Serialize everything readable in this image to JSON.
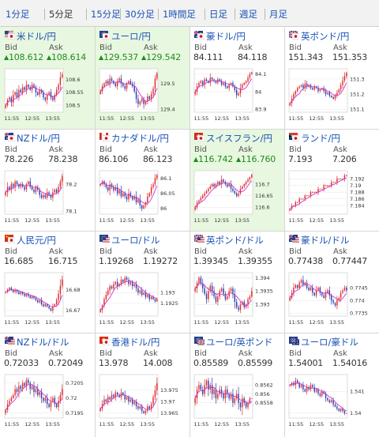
{
  "timeframe_tabs": [
    {
      "label": "1分足",
      "active": false
    },
    {
      "label": "5分足",
      "active": true
    },
    {
      "label": "15分足",
      "active": false
    },
    {
      "label": "30分足",
      "active": false
    },
    {
      "label": "1時間足",
      "active": false
    },
    {
      "label": "日足",
      "active": false
    },
    {
      "label": "週足",
      "active": false
    },
    {
      "label": "月足",
      "active": false
    }
  ],
  "bid_label": "Bid",
  "ask_label": "Ask",
  "colors": {
    "link": "#1a53b8",
    "up": "#1e8c1e",
    "highlight": "#e8f7df",
    "candle_up": "#e02828",
    "candle_down": "#2c3ea8",
    "moving_average": "#cc33cc"
  },
  "pairs": [
    {
      "name": "米ドル/円",
      "flags": [
        "us",
        "jp"
      ],
      "bid": "108.612",
      "ask": "108.614",
      "direction": "up",
      "highlighted": true,
      "chart_data": {
        "type": "candlestick",
        "yticks": [
          "108.6",
          "108.55",
          "108.5"
        ],
        "xticks": [
          "11:55",
          "12:55",
          "13:55"
        ],
        "close": [
          108.5,
          108.52,
          108.53,
          108.51,
          108.54,
          108.55,
          108.53,
          108.56,
          108.55,
          108.57,
          108.56,
          108.58,
          108.57,
          108.56,
          108.58,
          108.57,
          108.55,
          108.54,
          108.56,
          108.55,
          108.53,
          108.52,
          108.54,
          108.55,
          108.53,
          108.52,
          108.54,
          108.56,
          108.58,
          108.61,
          108.62
        ]
      }
    },
    {
      "name": "ユーロ/円",
      "flags": [
        "eu",
        "jp"
      ],
      "bid": "129.537",
      "ask": "129.542",
      "direction": "up",
      "highlighted": true,
      "chart_data": {
        "type": "candlestick",
        "yticks": [
          "129.5",
          "129.4"
        ],
        "xticks": [
          "11:55",
          "12:55",
          "13:55"
        ],
        "close": [
          129.47,
          129.49,
          129.5,
          129.51,
          129.5,
          129.52,
          129.51,
          129.5,
          129.49,
          129.51,
          129.52,
          129.5,
          129.49,
          129.48,
          129.5,
          129.51,
          129.5,
          129.49,
          129.47,
          129.44,
          129.42,
          129.43,
          129.44,
          129.42,
          129.43,
          129.45,
          129.44,
          129.46,
          129.48,
          129.52,
          129.54
        ]
      }
    },
    {
      "name": "豪ドル/円",
      "flags": [
        "au",
        "jp"
      ],
      "bid": "84.111",
      "ask": "84.118",
      "direction": "none",
      "highlighted": false,
      "chart_data": {
        "type": "candlestick",
        "yticks": [
          "84.1",
          "84",
          "83.9"
        ],
        "xticks": [
          "11:55",
          "12:55",
          "13:55"
        ],
        "close": [
          84.0,
          84.03,
          84.05,
          84.06,
          84.04,
          84.07,
          84.06,
          84.05,
          84.08,
          84.07,
          84.06,
          84.05,
          84.07,
          84.06,
          84.04,
          84.05,
          84.03,
          84.02,
          84.04,
          84.05,
          84.03,
          84.01,
          83.98,
          83.99,
          84.02,
          84.04,
          84.05,
          84.06,
          84.08,
          84.1,
          84.11
        ]
      }
    },
    {
      "name": "英ポンド/円",
      "flags": [
        "gb",
        "jp"
      ],
      "bid": "151.343",
      "ask": "151.353",
      "direction": "none",
      "highlighted": false,
      "chart_data": {
        "type": "candlestick",
        "yticks": [
          "151.3",
          "151.2",
          "151.1"
        ],
        "xticks": [
          "11:55",
          "12:55",
          "13:55"
        ],
        "close": [
          151.14,
          151.17,
          151.2,
          151.22,
          151.24,
          151.25,
          151.26,
          151.24,
          151.27,
          151.25,
          151.26,
          151.24,
          151.23,
          151.25,
          151.24,
          151.22,
          151.23,
          151.24,
          151.22,
          151.2,
          151.21,
          151.19,
          151.18,
          151.17,
          151.19,
          151.21,
          151.23,
          151.26,
          151.29,
          151.32,
          151.34
        ]
      }
    },
    {
      "name": "NZドル/円",
      "flags": [
        "nz",
        "jp"
      ],
      "bid": "78.226",
      "ask": "78.238",
      "direction": "none",
      "highlighted": false,
      "chart_data": {
        "type": "candlestick",
        "yticks": [
          "78.2",
          "78.1"
        ],
        "xticks": [
          "11:55",
          "12:55",
          "13:55"
        ],
        "close": [
          78.17,
          78.19,
          78.18,
          78.2,
          78.19,
          78.21,
          78.2,
          78.19,
          78.2,
          78.19,
          78.18,
          78.2,
          78.21,
          78.19,
          78.18,
          78.17,
          78.19,
          78.18,
          78.16,
          78.15,
          78.16,
          78.15,
          78.17,
          78.16,
          78.15,
          78.17,
          78.18,
          78.17,
          78.19,
          78.21,
          78.23
        ]
      }
    },
    {
      "name": "カナダドル/円",
      "flags": [
        "ca",
        "jp"
      ],
      "bid": "86.106",
      "ask": "86.123",
      "direction": "none",
      "highlighted": false,
      "chart_data": {
        "type": "candlestick",
        "yticks": [
          "86.1",
          "86.05",
          "86"
        ],
        "xticks": [
          "11:55",
          "12:55",
          "13:55"
        ],
        "close": [
          86.08,
          86.09,
          86.08,
          86.07,
          86.06,
          86.08,
          86.07,
          86.06,
          86.07,
          86.05,
          86.06,
          86.04,
          86.05,
          86.04,
          86.03,
          86.05,
          86.04,
          86.03,
          86.04,
          86.02,
          86.03,
          86.01,
          86.0,
          86.01,
          86.02,
          86.04,
          86.05,
          86.07,
          86.08,
          86.1,
          86.11
        ]
      }
    },
    {
      "name": "スイスフラン/円",
      "flags": [
        "ch",
        "jp"
      ],
      "bid": "116.742",
      "ask": "116.760",
      "direction": "up",
      "highlighted": true,
      "chart_data": {
        "type": "candlestick",
        "yticks": [
          "116.7",
          "116.65",
          "116.6"
        ],
        "xticks": [
          "11:55",
          "12:55",
          "13:55"
        ],
        "close": [
          116.6,
          116.62,
          116.63,
          116.64,
          116.65,
          116.66,
          116.67,
          116.68,
          116.69,
          116.7,
          116.69,
          116.7,
          116.71,
          116.7,
          116.72,
          116.71,
          116.7,
          116.69,
          116.7,
          116.68,
          116.67,
          116.66,
          116.65,
          116.66,
          116.68,
          116.69,
          116.7,
          116.71,
          116.72,
          116.73,
          116.74
        ]
      }
    },
    {
      "name": "ランド/円",
      "flags": [
        "za",
        "jp"
      ],
      "bid": "7.193",
      "ask": "7.206",
      "direction": "none",
      "highlighted": false,
      "chart_data": {
        "type": "candlestick",
        "yticks": [
          "7.192",
          "7.19",
          "7.188",
          "7.186",
          "7.184"
        ],
        "xticks": [
          "11:55",
          "12:55",
          "13:55"
        ],
        "close": [
          7.183,
          7.184,
          7.184,
          7.185,
          7.185,
          7.186,
          7.186,
          7.186,
          7.187,
          7.187,
          7.187,
          7.188,
          7.188,
          7.188,
          7.188,
          7.189,
          7.189,
          7.189,
          7.19,
          7.19,
          7.19,
          7.19,
          7.191,
          7.191,
          7.191,
          7.192,
          7.192,
          7.192,
          7.192,
          7.193,
          7.193
        ]
      }
    },
    {
      "name": "人民元/円",
      "flags": [
        "cn",
        "jp"
      ],
      "bid": "16.685",
      "ask": "16.715",
      "direction": "none",
      "highlighted": false,
      "chart_data": {
        "type": "candlestick",
        "yticks": [
          "16.68",
          "16.67"
        ],
        "xticks": [
          "11:55",
          "12:55",
          "13:55"
        ],
        "close": [
          16.679,
          16.68,
          16.681,
          16.68,
          16.679,
          16.68,
          16.679,
          16.678,
          16.679,
          16.678,
          16.677,
          16.678,
          16.677,
          16.676,
          16.677,
          16.676,
          16.675,
          16.674,
          16.675,
          16.673,
          16.672,
          16.673,
          16.672,
          16.671,
          16.67,
          16.672,
          16.673,
          16.675,
          16.678,
          16.682,
          16.685
        ]
      }
    },
    {
      "name": "ユーロ/ドル",
      "flags": [
        "eu",
        "us"
      ],
      "bid": "1.19268",
      "ask": "1.19272",
      "direction": "none",
      "highlighted": false,
      "chart_data": {
        "type": "candlestick",
        "yticks": [
          "1.193",
          "1.1925"
        ],
        "xticks": [
          "11:55",
          "12:55",
          "13:55"
        ],
        "close": [
          1.1922,
          1.1924,
          1.1927,
          1.1929,
          1.1931,
          1.1933,
          1.1932,
          1.1934,
          1.1935,
          1.1933,
          1.1934,
          1.1936,
          1.1935,
          1.1937,
          1.1936,
          1.1934,
          1.1935,
          1.1933,
          1.1934,
          1.1932,
          1.193,
          1.1931,
          1.1929,
          1.193,
          1.1928,
          1.1929,
          1.1927,
          1.1928,
          1.1927,
          1.1926,
          1.1927
        ]
      }
    },
    {
      "name": "英ポンド/ドル",
      "flags": [
        "gb",
        "us"
      ],
      "bid": "1.39345",
      "ask": "1.39355",
      "direction": "none",
      "highlighted": false,
      "chart_data": {
        "type": "candlestick",
        "yticks": [
          "1.394",
          "1.3935",
          "1.393"
        ],
        "xticks": [
          "11:55",
          "12:55",
          "13:55"
        ],
        "close": [
          1.3936,
          1.3938,
          1.394,
          1.3938,
          1.3936,
          1.3934,
          1.3932,
          1.3935,
          1.3937,
          1.3935,
          1.3933,
          1.3931,
          1.3933,
          1.3935,
          1.3936,
          1.3934,
          1.3932,
          1.3933,
          1.3935,
          1.3936,
          1.3934,
          1.3931,
          1.3929,
          1.3928,
          1.393,
          1.3931,
          1.3929,
          1.393,
          1.3932,
          1.3933,
          1.3935
        ]
      }
    },
    {
      "name": "豪ドル/ドル",
      "flags": [
        "au",
        "us"
      ],
      "bid": "0.77438",
      "ask": "0.77447",
      "direction": "none",
      "highlighted": false,
      "chart_data": {
        "type": "candlestick",
        "yticks": [
          "0.7745",
          "0.774",
          "0.7735"
        ],
        "xticks": [
          "11:55",
          "12:55",
          "13:55"
        ],
        "close": [
          0.7741,
          0.7743,
          0.7745,
          0.7746,
          0.7745,
          0.7747,
          0.7748,
          0.7746,
          0.7747,
          0.7745,
          0.7744,
          0.7745,
          0.7743,
          0.7742,
          0.7744,
          0.7745,
          0.7743,
          0.7742,
          0.7741,
          0.7743,
          0.7744,
          0.7742,
          0.774,
          0.7739,
          0.7738,
          0.774,
          0.7741,
          0.7743,
          0.7744,
          0.7745,
          0.7744
        ]
      }
    },
    {
      "name": "NZドル/ドル",
      "flags": [
        "nz",
        "us"
      ],
      "bid": "0.72033",
      "ask": "0.72049",
      "direction": "none",
      "highlighted": false,
      "chart_data": {
        "type": "candlestick",
        "yticks": [
          "0.7205",
          "0.72",
          "0.7195"
        ],
        "xticks": [
          "11:55",
          "12:55",
          "13:55"
        ],
        "close": [
          0.7196,
          0.7198,
          0.7199,
          0.72,
          0.7201,
          0.7203,
          0.7202,
          0.7204,
          0.7203,
          0.7205,
          0.7204,
          0.7206,
          0.7205,
          0.7203,
          0.7204,
          0.7202,
          0.7203,
          0.7201,
          0.7202,
          0.72,
          0.7199,
          0.72,
          0.7198,
          0.7197,
          0.7199,
          0.72,
          0.7198,
          0.7197,
          0.7199,
          0.7201,
          0.7203
        ]
      }
    },
    {
      "name": "香港ドル/円",
      "flags": [
        "hk",
        "jp"
      ],
      "bid": "13.978",
      "ask": "14.008",
      "direction": "none",
      "highlighted": false,
      "chart_data": {
        "type": "candlestick",
        "yticks": [
          "13.975",
          "13.97",
          "13.965"
        ],
        "xticks": [
          "11:55",
          "12:55",
          "13:55"
        ],
        "close": [
          13.967,
          13.969,
          13.971,
          13.97,
          13.972,
          13.971,
          13.973,
          13.972,
          13.974,
          13.973,
          13.972,
          13.974,
          13.973,
          13.971,
          13.972,
          13.97,
          13.971,
          13.969,
          13.97,
          13.968,
          13.967,
          13.968,
          13.966,
          13.965,
          13.966,
          13.968,
          13.967,
          13.969,
          13.972,
          13.975,
          13.978
        ]
      }
    },
    {
      "name": "ユーロ/英ポンド",
      "flags": [
        "eu",
        "gb"
      ],
      "bid": "0.85589",
      "ask": "0.85599",
      "direction": "none",
      "highlighted": false,
      "chart_data": {
        "type": "candlestick",
        "yticks": [
          "0.8562",
          "0.856",
          "0.8558"
        ],
        "xticks": [
          "11:55",
          "12:55",
          "13:55"
        ],
        "close": [
          0.8559,
          0.8561,
          0.8562,
          0.8561,
          0.856,
          0.8562,
          0.8563,
          0.8561,
          0.8562,
          0.856,
          0.8561,
          0.8559,
          0.856,
          0.8561,
          0.856,
          0.8559,
          0.8561,
          0.856,
          0.8559,
          0.856,
          0.8558,
          0.8559,
          0.856,
          0.8558,
          0.8557,
          0.8559,
          0.8558,
          0.8557,
          0.8558,
          0.8559,
          0.8559
        ]
      }
    },
    {
      "name": "ユーロ/豪ドル",
      "flags": [
        "eu",
        "au"
      ],
      "bid": "1.54001",
      "ask": "1.54016",
      "direction": "none",
      "highlighted": false,
      "chart_data": {
        "type": "candlestick",
        "yticks": [
          "1.541",
          "1.54"
        ],
        "xticks": [
          "11:55",
          "12:55",
          "13:55"
        ],
        "close": [
          1.5413,
          1.5414,
          1.5413,
          1.5415,
          1.5414,
          1.5412,
          1.5413,
          1.5411,
          1.541,
          1.5412,
          1.5411,
          1.5413,
          1.5412,
          1.541,
          1.5411,
          1.5409,
          1.5408,
          1.541,
          1.5409,
          1.5407,
          1.5406,
          1.5405,
          1.5406,
          1.5404,
          1.5403,
          1.5402,
          1.5401,
          1.5402,
          1.5401,
          1.54,
          1.54
        ]
      }
    }
  ]
}
